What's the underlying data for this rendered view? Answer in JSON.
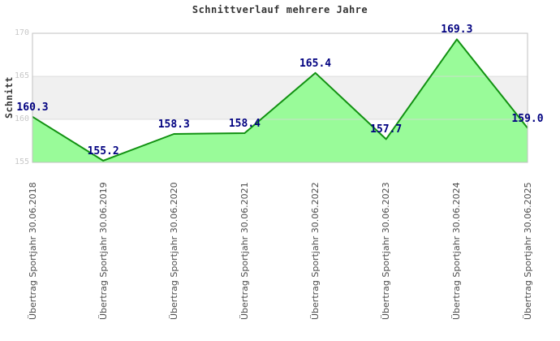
{
  "title": "Schnittverlauf mehrere Jahre",
  "chart_data": {
    "type": "area",
    "title": "Schnittverlauf mehrere Jahre",
    "xlabel": "",
    "ylabel": "Schnitt",
    "categories": [
      "Übertrag Sportjahr 30.06.2018",
      "Übertrag Sportjahr 30.06.2019",
      "Übertrag Sportjahr 30.06.2020",
      "Übertrag Sportjahr 30.06.2021",
      "Übertrag Sportjahr 30.06.2022",
      "Übertrag Sportjahr 30.06.2023",
      "Übertrag Sportjahr 30.06.2024",
      "Übertrag Sportjahr 30.06.2025"
    ],
    "values": [
      160.3,
      155.2,
      158.3,
      158.4,
      165.4,
      157.7,
      169.3,
      159.0
    ],
    "point_labels": [
      "160.3",
      "155.2",
      "158.3",
      "158.4",
      "165.4",
      "157.7",
      "169.3",
      "159.0"
    ],
    "ylim": [
      155,
      170
    ],
    "yticks": [
      155,
      160,
      165,
      170
    ],
    "shaded_band": [
      160,
      165
    ],
    "legend": "none",
    "grid": "horizontal lines at 160 and 165, gray band between 160 and 165"
  },
  "colors": {
    "background": "#ffffff",
    "area_fill": "#99fb99",
    "line": "#119111",
    "point_label": "#000080",
    "band": "#f0f0f0",
    "gridline": "#d9d9d9",
    "plot_border": "#c0c0c0",
    "y_tick_label": "#c8c8c8",
    "x_tick_label": "#4d4d4d",
    "title": "#333333"
  }
}
